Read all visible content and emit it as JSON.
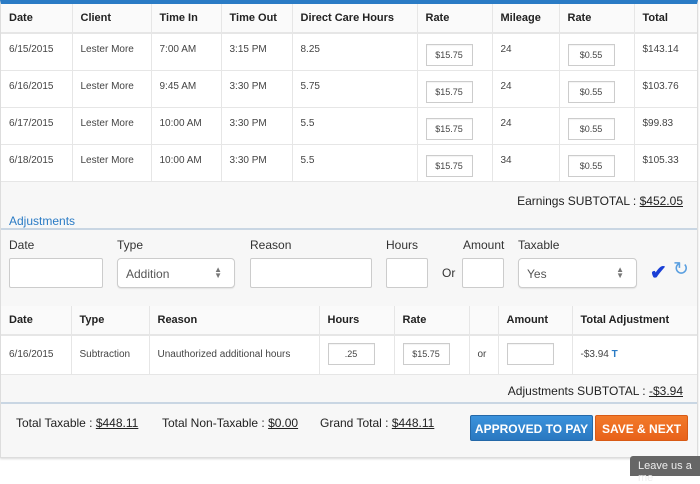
{
  "earnings": {
    "headers": [
      "Date",
      "Client",
      "Time In",
      "Time Out",
      "Direct Care Hours",
      "Rate",
      "Mileage",
      "Rate",
      "Total"
    ],
    "rows": [
      {
        "date": "6/15/2015",
        "client": "Lester More",
        "time_in": "7:00 AM",
        "time_out": "3:15 PM",
        "hours": "8.25",
        "rate": "$15.75",
        "mileage": "24",
        "mileage_rate": "$0.55",
        "total": "$143.14"
      },
      {
        "date": "6/16/2015",
        "client": "Lester More",
        "time_in": "9:45 AM",
        "time_out": "3:30 PM",
        "hours": "5.75",
        "rate": "$15.75",
        "mileage": "24",
        "mileage_rate": "$0.55",
        "total": "$103.76"
      },
      {
        "date": "6/17/2015",
        "client": "Lester More",
        "time_in": "10:00 AM",
        "time_out": "3:30 PM",
        "hours": "5.5",
        "rate": "$15.75",
        "mileage": "24",
        "mileage_rate": "$0.55",
        "total": "$99.83"
      },
      {
        "date": "6/18/2015",
        "client": "Lester More",
        "time_in": "10:00 AM",
        "time_out": "3:30 PM",
        "hours": "5.5",
        "rate": "$15.75",
        "mileage": "34",
        "mileage_rate": "$0.55",
        "total": "$105.33"
      }
    ],
    "subtotal_label": "Earnings SUBTOTAL : ",
    "subtotal": "$452.05"
  },
  "adjustments": {
    "title": "Adjustments",
    "form": {
      "date_label": "Date",
      "type_label": "Type",
      "type_value": "Addition",
      "reason_label": "Reason",
      "hours_label": "Hours",
      "or_label": "Or",
      "amount_label": "Amount",
      "taxable_label": "Taxable",
      "taxable_value": "Yes"
    },
    "headers": [
      "Date",
      "Type",
      "Reason",
      "Hours",
      "Rate",
      "",
      "Amount",
      "Total Adjustment"
    ],
    "rows": [
      {
        "date": "6/16/2015",
        "type": "Subtraction",
        "reason": "Unauthorized additional hours",
        "hours": ".25",
        "rate": "$15.75",
        "or": "or",
        "amount": "",
        "total": "-$3.94",
        "flag": "T"
      }
    ],
    "subtotal_label": "Adjustments SUBTOTAL : ",
    "subtotal": "-$3.94"
  },
  "footer": {
    "taxable_label": "Total Taxable : ",
    "taxable": "$448.11",
    "nontaxable_label": "Total Non-Taxable : ",
    "nontaxable": "$0.00",
    "grand_label": "Grand Total : ",
    "grand": "$448.11",
    "approve_button": "APPROVED TO PAY",
    "save_button": "SAVE & NEXT"
  },
  "chat_tab": "Leave us a me",
  "colors": {
    "accent": "#2a7bc5",
    "approve": "#2f86d0",
    "save": "#ef6c1f"
  }
}
